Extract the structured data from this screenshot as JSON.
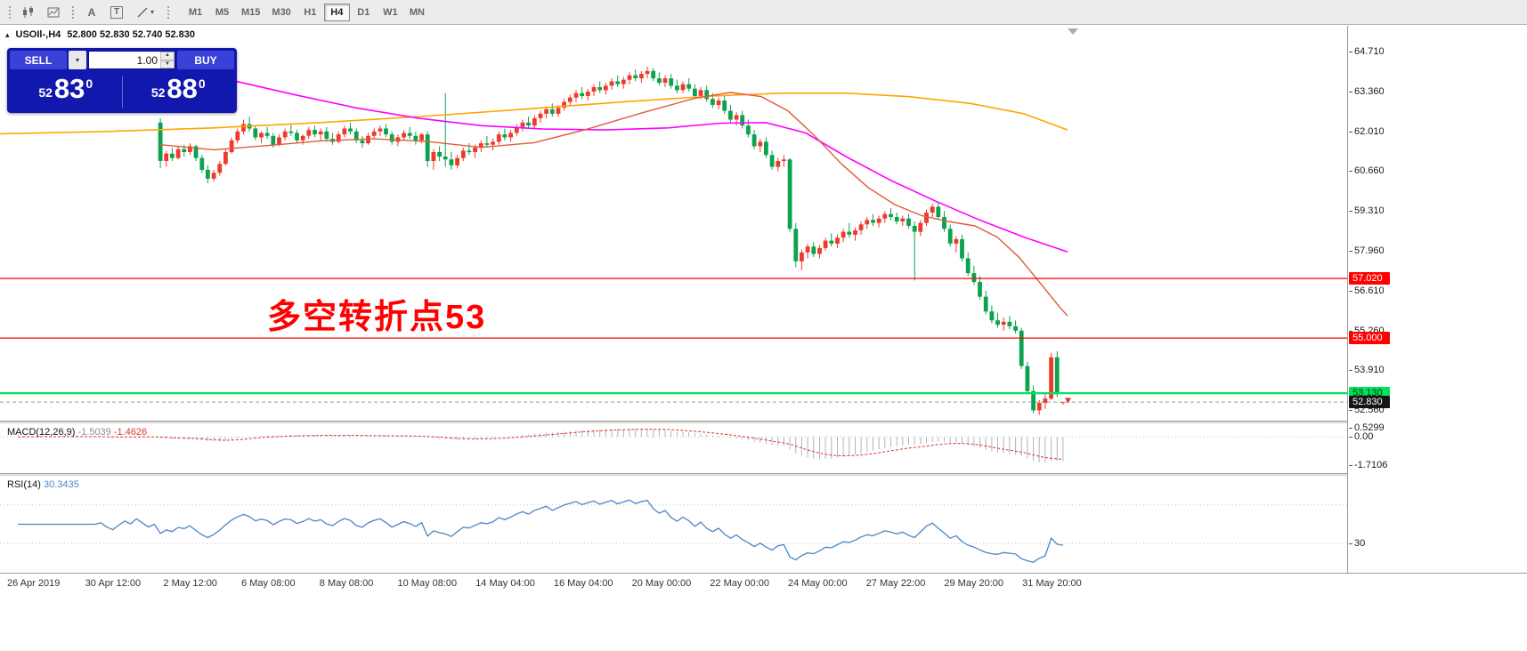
{
  "toolbar": {
    "icons": [
      {
        "name": "candlestick-chart-icon"
      },
      {
        "name": "indicators-icon"
      },
      {
        "name": "text-annotation-icon",
        "glyph": "A"
      },
      {
        "name": "text-label-icon",
        "glyph": "T"
      },
      {
        "name": "draw-tools-icon"
      }
    ],
    "timeframes": [
      "M1",
      "M5",
      "M15",
      "M30",
      "H1",
      "H4",
      "D1",
      "W1",
      "MN"
    ],
    "active_timeframe": "H4"
  },
  "chart": {
    "symbol_label": "USOIl-,H4",
    "ohlc_values": "52.800 52.830 52.740 52.830"
  },
  "trade_panel": {
    "sell_label": "SELL",
    "buy_label": "BUY",
    "volume": "1.00",
    "sell_price": {
      "small": "52",
      "big": "83",
      "sup": "0"
    },
    "buy_price": {
      "small": "52",
      "big": "88",
      "sup": "0"
    }
  },
  "annotation": {
    "text": "多空转折点53",
    "color": "#ff0000"
  },
  "icons": {
    "panel_toggle": "▴",
    "dropdown": "▾",
    "spinner_up": "▲",
    "spinner_down": "▼"
  },
  "price_axis": {
    "ticks": [
      {
        "label": "64.710",
        "value": 64.71
      },
      {
        "label": "63.360",
        "value": 63.36
      },
      {
        "label": "62.010",
        "value": 62.01
      },
      {
        "label": "60.660",
        "value": 60.66
      },
      {
        "label": "59.310",
        "value": 59.31
      },
      {
        "label": "57.960",
        "value": 57.96
      },
      {
        "label": "56.610",
        "value": 56.61
      },
      {
        "label": "55.260",
        "value": 55.26
      },
      {
        "label": "53.910",
        "value": 53.91
      },
      {
        "label": "52.560",
        "value": 52.56
      }
    ],
    "levels": [
      {
        "label": "57.020",
        "value": 57.02,
        "bg": "#ff0000",
        "fg": "#ffffff",
        "line_color": "#ff0000",
        "line_width": 1.2,
        "line_style": "solid"
      },
      {
        "label": "55.000",
        "value": 55.0,
        "bg": "#ff0000",
        "fg": "#ffffff",
        "line_color": "#ff0000",
        "line_width": 1.2,
        "line_style": "solid"
      },
      {
        "label": "53.130",
        "value": 53.13,
        "bg": "#00e25e",
        "fg": "#003300",
        "line_color": "#00e25e",
        "line_width": 2.2,
        "line_style": "solid"
      },
      {
        "label": "52.830",
        "value": 52.83,
        "bg": "#161616",
        "fg": "#ffffff",
        "line_color": "#9a9a9a",
        "line_width": 1,
        "line_style": "dash"
      }
    ]
  },
  "macd": {
    "name_label": "MACD(12,26,9)",
    "value_main": "-1.5039",
    "value_signal": "-1.4626",
    "params": {
      "fast": 12,
      "slow": 26,
      "signal": 9
    },
    "axis_labels": [
      {
        "label": "0.5299",
        "value": 0.5299
      },
      {
        "label": "0.00",
        "value": 0
      },
      {
        "label": "-1.7106",
        "value": -1.7106
      }
    ],
    "range_top": 0.82,
    "range_bottom": -2.2
  },
  "rsi": {
    "name_label": "RSI(14)",
    "value": "30.3435",
    "period": 14,
    "levels": [
      30,
      70
    ],
    "axis_labels": [
      {
        "label": "30",
        "value": 30
      }
    ],
    "range": [
      0,
      100
    ]
  },
  "time_axis": {
    "labels": [
      "26 Apr 2019",
      "30 Apr 12:00",
      "2 May 12:00",
      "6 May 08:00",
      "8 May 08:00",
      "10 May 08:00",
      "14 May 04:00",
      "16 May 04:00",
      "20 May 00:00",
      "22 May 00:00",
      "24 May 00:00",
      "27 May 22:00",
      "29 May 20:00",
      "31 May 20:00"
    ]
  },
  "chart_data": {
    "type": "candlestick",
    "symbol": "USOIl-",
    "timeframe": "H4",
    "visible_price_range": [
      52.2,
      65.58
    ],
    "colors": {
      "up": "#f0392b",
      "down": "#0ba34e",
      "ma_slow": "#ffa500",
      "ma_mid": "#ff00ff",
      "ma_fast": "#e05a3c",
      "macd_hist": "#b4b4b4",
      "macd_signal": "#e03030",
      "rsi": "#4a86c8"
    },
    "warmup_closes": [
      61.8,
      62.0,
      61.7,
      61.9,
      62.1,
      61.8,
      61.6,
      61.9,
      62.2,
      62.0,
      61.7,
      61.5,
      61.8,
      62.1,
      61.9,
      61.6,
      61.4,
      61.7,
      62.0,
      61.8,
      62.2,
      61.9,
      61.6,
      61.8
    ],
    "candles": [
      [
        62.3,
        62.45,
        60.75,
        61.0
      ],
      [
        61.0,
        61.35,
        60.8,
        61.25
      ],
      [
        61.25,
        61.45,
        61.0,
        61.1
      ],
      [
        61.1,
        61.5,
        61.05,
        61.4
      ],
      [
        61.4,
        61.55,
        61.15,
        61.3
      ],
      [
        61.3,
        61.6,
        61.2,
        61.5
      ],
      [
        61.5,
        61.55,
        61.0,
        61.1
      ],
      [
        61.1,
        61.2,
        60.6,
        60.7
      ],
      [
        60.7,
        60.85,
        60.25,
        60.4
      ],
      [
        60.4,
        60.7,
        60.3,
        60.6
      ],
      [
        60.6,
        61.0,
        60.5,
        60.9
      ],
      [
        60.9,
        61.4,
        60.85,
        61.3
      ],
      [
        61.3,
        61.8,
        61.25,
        61.7
      ],
      [
        61.7,
        62.1,
        61.6,
        62.0
      ],
      [
        62.0,
        62.4,
        61.9,
        62.25
      ],
      [
        62.25,
        62.5,
        62.0,
        62.1
      ],
      [
        62.1,
        62.2,
        61.7,
        61.8
      ],
      [
        61.8,
        62.0,
        61.6,
        61.95
      ],
      [
        61.95,
        62.15,
        61.75,
        61.85
      ],
      [
        61.85,
        61.95,
        61.45,
        61.55
      ],
      [
        61.55,
        61.9,
        61.5,
        61.8
      ],
      [
        61.8,
        62.1,
        61.7,
        62.0
      ],
      [
        62.0,
        62.25,
        61.85,
        61.95
      ],
      [
        61.95,
        62.05,
        61.6,
        61.7
      ],
      [
        61.7,
        61.9,
        61.55,
        61.85
      ],
      [
        61.85,
        62.15,
        61.75,
        62.05
      ],
      [
        62.05,
        62.2,
        61.8,
        61.9
      ],
      [
        61.9,
        62.1,
        61.7,
        62.0
      ],
      [
        62.0,
        62.15,
        61.65,
        61.75
      ],
      [
        61.75,
        61.95,
        61.55,
        61.65
      ],
      [
        61.65,
        62.0,
        61.6,
        61.9
      ],
      [
        61.9,
        62.2,
        61.8,
        62.1
      ],
      [
        62.1,
        62.3,
        61.9,
        62.0
      ],
      [
        62.0,
        62.1,
        61.6,
        61.7
      ],
      [
        61.7,
        61.85,
        61.45,
        61.6
      ],
      [
        61.6,
        61.95,
        61.55,
        61.85
      ],
      [
        61.85,
        62.1,
        61.75,
        62.0
      ],
      [
        62.0,
        62.2,
        61.85,
        62.1
      ],
      [
        62.1,
        62.25,
        61.8,
        61.9
      ],
      [
        61.9,
        62.0,
        61.55,
        61.65
      ],
      [
        61.65,
        61.9,
        61.5,
        61.8
      ],
      [
        61.8,
        62.05,
        61.7,
        61.95
      ],
      [
        61.95,
        62.15,
        61.75,
        61.85
      ],
      [
        61.85,
        62.0,
        61.55,
        61.7
      ],
      [
        61.7,
        61.95,
        61.6,
        61.9
      ],
      [
        61.9,
        62.0,
        60.8,
        61.0
      ],
      [
        61.0,
        61.4,
        60.7,
        61.3
      ],
      [
        61.3,
        61.5,
        61.0,
        61.15
      ],
      [
        61.15,
        63.3,
        60.8,
        61.05
      ],
      [
        61.05,
        61.3,
        60.7,
        60.85
      ],
      [
        60.85,
        61.2,
        60.75,
        61.1
      ],
      [
        61.1,
        61.45,
        61.0,
        61.35
      ],
      [
        61.35,
        61.6,
        61.2,
        61.3
      ],
      [
        61.3,
        61.55,
        61.1,
        61.45
      ],
      [
        61.45,
        61.7,
        61.3,
        61.6
      ],
      [
        61.6,
        61.85,
        61.45,
        61.55
      ],
      [
        61.55,
        61.75,
        61.35,
        61.65
      ],
      [
        61.65,
        62.0,
        61.55,
        61.9
      ],
      [
        61.9,
        62.1,
        61.7,
        61.8
      ],
      [
        61.8,
        62.05,
        61.65,
        61.95
      ],
      [
        61.95,
        62.25,
        61.85,
        62.15
      ],
      [
        62.15,
        62.4,
        62.0,
        62.3
      ],
      [
        62.3,
        62.5,
        62.1,
        62.2
      ],
      [
        62.2,
        62.55,
        62.1,
        62.45
      ],
      [
        62.45,
        62.7,
        62.3,
        62.6
      ],
      [
        62.6,
        62.85,
        62.45,
        62.75
      ],
      [
        62.75,
        62.95,
        62.5,
        62.6
      ],
      [
        62.6,
        62.9,
        62.5,
        62.8
      ],
      [
        62.8,
        63.1,
        62.7,
        63.0
      ],
      [
        63.0,
        63.25,
        62.85,
        63.15
      ],
      [
        63.15,
        63.4,
        63.0,
        63.3
      ],
      [
        63.3,
        63.5,
        63.1,
        63.2
      ],
      [
        63.2,
        63.45,
        63.05,
        63.35
      ],
      [
        63.35,
        63.6,
        63.2,
        63.5
      ],
      [
        63.5,
        63.7,
        63.3,
        63.4
      ],
      [
        63.4,
        63.65,
        63.25,
        63.55
      ],
      [
        63.55,
        63.8,
        63.4,
        63.7
      ],
      [
        63.7,
        63.9,
        63.5,
        63.6
      ],
      [
        63.6,
        63.85,
        63.45,
        63.75
      ],
      [
        63.75,
        64.0,
        63.6,
        63.9
      ],
      [
        63.9,
        64.1,
        63.7,
        63.8
      ],
      [
        63.8,
        64.05,
        63.65,
        63.95
      ],
      [
        63.95,
        64.2,
        63.8,
        64.05
      ],
      [
        64.05,
        64.15,
        63.7,
        63.8
      ],
      [
        63.8,
        64.0,
        63.55,
        63.65
      ],
      [
        63.65,
        63.9,
        63.5,
        63.8
      ],
      [
        63.8,
        63.95,
        63.45,
        63.55
      ],
      [
        63.55,
        63.75,
        63.3,
        63.4
      ],
      [
        63.4,
        63.7,
        63.3,
        63.6
      ],
      [
        63.6,
        63.8,
        63.35,
        63.45
      ],
      [
        63.45,
        63.6,
        63.1,
        63.2
      ],
      [
        63.2,
        63.5,
        63.1,
        63.4
      ],
      [
        63.4,
        63.55,
        63.0,
        63.1
      ],
      [
        63.1,
        63.3,
        62.8,
        62.9
      ],
      [
        62.9,
        63.15,
        62.75,
        63.05
      ],
      [
        63.05,
        63.2,
        62.6,
        62.7
      ],
      [
        62.7,
        62.9,
        62.3,
        62.4
      ],
      [
        62.4,
        62.65,
        62.2,
        62.55
      ],
      [
        62.55,
        62.7,
        62.1,
        62.2
      ],
      [
        62.2,
        62.4,
        61.8,
        61.9
      ],
      [
        61.9,
        62.05,
        61.4,
        61.5
      ],
      [
        61.5,
        61.75,
        61.3,
        61.65
      ],
      [
        61.65,
        61.8,
        61.1,
        61.2
      ],
      [
        61.2,
        61.35,
        60.7,
        60.8
      ],
      [
        60.8,
        61.1,
        60.65,
        61.0
      ],
      [
        61.0,
        61.2,
        60.8,
        61.05
      ],
      [
        61.05,
        61.1,
        58.6,
        58.7
      ],
      [
        58.7,
        58.9,
        57.4,
        57.6
      ],
      [
        57.6,
        58.0,
        57.3,
        57.9
      ],
      [
        57.9,
        58.2,
        57.7,
        58.1
      ],
      [
        58.1,
        58.25,
        57.75,
        57.85
      ],
      [
        57.85,
        58.15,
        57.7,
        58.05
      ],
      [
        58.05,
        58.4,
        57.95,
        58.3
      ],
      [
        58.3,
        58.55,
        58.1,
        58.2
      ],
      [
        58.2,
        58.5,
        58.05,
        58.4
      ],
      [
        58.4,
        58.7,
        58.25,
        58.6
      ],
      [
        58.6,
        58.9,
        58.4,
        58.5
      ],
      [
        58.5,
        58.75,
        58.3,
        58.65
      ],
      [
        58.65,
        58.95,
        58.5,
        58.85
      ],
      [
        58.85,
        59.1,
        58.7,
        59.0
      ],
      [
        59.0,
        59.2,
        58.8,
        58.9
      ],
      [
        58.9,
        59.15,
        58.75,
        59.05
      ],
      [
        59.05,
        59.3,
        58.9,
        59.2
      ],
      [
        59.2,
        59.4,
        59.0,
        59.1
      ],
      [
        59.1,
        59.25,
        58.85,
        58.95
      ],
      [
        58.95,
        59.15,
        58.8,
        59.05
      ],
      [
        59.05,
        59.2,
        58.7,
        58.8
      ],
      [
        58.8,
        58.95,
        56.95,
        58.6
      ],
      [
        58.6,
        59.0,
        58.45,
        58.9
      ],
      [
        58.9,
        59.35,
        58.8,
        59.25
      ],
      [
        59.25,
        59.55,
        59.1,
        59.45
      ],
      [
        59.45,
        59.6,
        59.0,
        59.1
      ],
      [
        59.1,
        59.3,
        58.6,
        58.7
      ],
      [
        58.7,
        58.85,
        58.1,
        58.2
      ],
      [
        58.2,
        58.45,
        57.9,
        58.35
      ],
      [
        58.35,
        58.5,
        57.6,
        57.7
      ],
      [
        57.7,
        57.9,
        57.1,
        57.2
      ],
      [
        57.2,
        57.45,
        56.8,
        56.9
      ],
      [
        56.9,
        57.1,
        56.3,
        56.4
      ],
      [
        56.4,
        56.6,
        55.8,
        55.9
      ],
      [
        55.9,
        56.1,
        55.5,
        55.6
      ],
      [
        55.6,
        55.85,
        55.35,
        55.45
      ],
      [
        55.45,
        55.7,
        55.25,
        55.55
      ],
      [
        55.55,
        55.75,
        55.3,
        55.4
      ],
      [
        55.4,
        55.6,
        55.15,
        55.25
      ],
      [
        55.25,
        55.35,
        53.95,
        54.05
      ],
      [
        54.05,
        54.2,
        53.1,
        53.2
      ],
      [
        53.2,
        53.4,
        52.45,
        52.55
      ],
      [
        52.55,
        52.9,
        52.4,
        52.8
      ],
      [
        52.8,
        53.1,
        52.6,
        52.95
      ],
      [
        52.95,
        54.5,
        52.9,
        54.35
      ],
      [
        54.35,
        54.55,
        53.0,
        53.1
      ],
      [
        52.8,
        52.83,
        52.74,
        52.83
      ]
    ],
    "ma": {
      "slow_orange": [
        [
          0,
          61.92
        ],
        [
          120,
          62.0
        ],
        [
          240,
          62.12
        ],
        [
          360,
          62.3
        ],
        [
          480,
          62.52
        ],
        [
          600,
          62.78
        ],
        [
          700,
          63.0
        ],
        [
          800,
          63.2
        ],
        [
          880,
          63.3
        ],
        [
          950,
          63.3
        ],
        [
          1020,
          63.18
        ],
        [
          1090,
          62.95
        ],
        [
          1150,
          62.6
        ],
        [
          1199,
          62.05
        ]
      ],
      "mid_magenta": [
        [
          262,
          63.72
        ],
        [
          330,
          63.25
        ],
        [
          400,
          62.8
        ],
        [
          470,
          62.45
        ],
        [
          540,
          62.2
        ],
        [
          610,
          62.08
        ],
        [
          680,
          62.05
        ],
        [
          750,
          62.12
        ],
        [
          810,
          62.28
        ],
        [
          860,
          62.3
        ],
        [
          905,
          61.95
        ],
        [
          950,
          61.15
        ],
        [
          1000,
          60.35
        ],
        [
          1050,
          59.65
        ],
        [
          1100,
          59.0
        ],
        [
          1150,
          58.42
        ],
        [
          1199,
          57.92
        ]
      ],
      "fast_red": [
        [
          180,
          61.55
        ],
        [
          240,
          61.38
        ],
        [
          300,
          61.52
        ],
        [
          360,
          61.68
        ],
        [
          420,
          61.75
        ],
        [
          480,
          61.66
        ],
        [
          540,
          61.46
        ],
        [
          600,
          61.62
        ],
        [
          660,
          62.08
        ],
        [
          720,
          62.62
        ],
        [
          780,
          63.12
        ],
        [
          820,
          63.32
        ],
        [
          855,
          63.18
        ],
        [
          885,
          62.7
        ],
        [
          915,
          61.85
        ],
        [
          945,
          60.9
        ],
        [
          975,
          60.1
        ],
        [
          1005,
          59.52
        ],
        [
          1035,
          59.15
        ],
        [
          1065,
          58.95
        ],
        [
          1095,
          58.8
        ],
        [
          1120,
          58.42
        ],
        [
          1145,
          57.72
        ],
        [
          1170,
          56.8
        ],
        [
          1190,
          56.05
        ],
        [
          1199,
          55.75
        ]
      ]
    }
  }
}
